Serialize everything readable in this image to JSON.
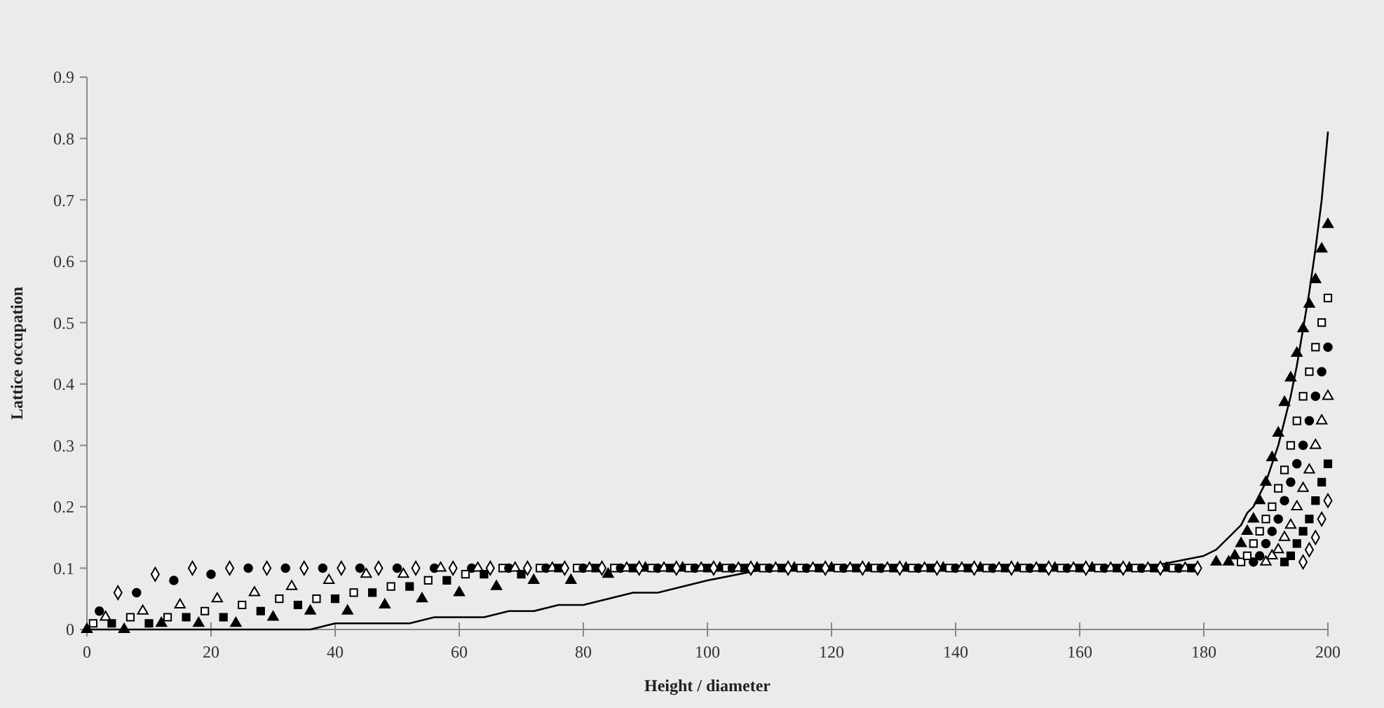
{
  "chart_data": {
    "type": "scatter",
    "xlabel": "Height / diameter",
    "ylabel": "Lattice occupation",
    "xlim": [
      0,
      200
    ],
    "xticks": [
      0,
      20,
      40,
      60,
      80,
      100,
      120,
      140,
      160,
      180,
      200
    ],
    "ylim": [
      0,
      0.9
    ],
    "yticks": [
      0,
      0.1,
      0.2,
      0.3,
      0.4,
      0.5,
      0.6,
      0.7,
      0.8,
      0.9
    ],
    "grid": false,
    "series": [
      {
        "type": "line",
        "marker": "none",
        "line_style": "solid",
        "color": "#000000",
        "x": [
          0,
          4,
          8,
          12,
          16,
          20,
          24,
          28,
          32,
          36,
          40,
          44,
          48,
          52,
          56,
          60,
          64,
          68,
          72,
          76,
          80,
          84,
          88,
          92,
          96,
          100,
          110,
          120,
          130,
          140,
          150,
          160,
          170,
          180,
          182,
          184,
          185,
          186,
          187,
          188,
          189,
          190,
          191,
          192,
          193,
          194,
          195,
          196,
          197,
          198,
          199,
          200
        ],
        "values": [
          0,
          0,
          0,
          0,
          0,
          0,
          0,
          0,
          0,
          0,
          0.01,
          0.01,
          0.01,
          0.01,
          0.02,
          0.02,
          0.02,
          0.03,
          0.03,
          0.04,
          0.04,
          0.05,
          0.06,
          0.06,
          0.07,
          0.08,
          0.1,
          0.1,
          0.1,
          0.1,
          0.1,
          0.1,
          0.1,
          0.12,
          0.13,
          0.15,
          0.16,
          0.17,
          0.19,
          0.2,
          0.22,
          0.24,
          0.27,
          0.3,
          0.34,
          0.38,
          0.43,
          0.49,
          0.55,
          0.62,
          0.7,
          0.81
        ]
      },
      {
        "marker": "triangle",
        "color": "#000000",
        "x": [
          0,
          6,
          12,
          18,
          24,
          30,
          36,
          42,
          48,
          54,
          60,
          66,
          72,
          78,
          84,
          90,
          96,
          102,
          108,
          114,
          120,
          126,
          132,
          138,
          144,
          150,
          156,
          162,
          168,
          174,
          182,
          184,
          185,
          186,
          187,
          188,
          189,
          190,
          191,
          192,
          193,
          194,
          195,
          196,
          197,
          198,
          199,
          200
        ],
        "values": [
          0,
          0,
          0.01,
          0.01,
          0.01,
          0.02,
          0.03,
          0.03,
          0.04,
          0.05,
          0.06,
          0.07,
          0.08,
          0.08,
          0.09,
          0.1,
          0.1,
          0.1,
          0.1,
          0.1,
          0.1,
          0.1,
          0.1,
          0.1,
          0.1,
          0.1,
          0.1,
          0.1,
          0.1,
          0.1,
          0.11,
          0.11,
          0.12,
          0.14,
          0.16,
          0.18,
          0.21,
          0.24,
          0.28,
          0.32,
          0.37,
          0.41,
          0.45,
          0.49,
          0.53,
          0.57,
          0.62,
          0.66
        ]
      },
      {
        "marker": "square",
        "color": "#ffffff",
        "x": [
          1,
          7,
          13,
          19,
          25,
          31,
          37,
          43,
          49,
          55,
          61,
          67,
          73,
          79,
          85,
          91,
          97,
          103,
          109,
          115,
          121,
          127,
          133,
          139,
          145,
          151,
          157,
          163,
          169,
          175,
          186,
          187,
          188,
          189,
          190,
          191,
          192,
          193,
          194,
          195,
          196,
          197,
          198,
          199,
          200
        ],
        "values": [
          0.01,
          0.02,
          0.02,
          0.03,
          0.04,
          0.05,
          0.05,
          0.06,
          0.07,
          0.08,
          0.09,
          0.1,
          0.1,
          0.1,
          0.1,
          0.1,
          0.1,
          0.1,
          0.1,
          0.1,
          0.1,
          0.1,
          0.1,
          0.1,
          0.1,
          0.1,
          0.1,
          0.1,
          0.1,
          0.1,
          0.11,
          0.12,
          0.14,
          0.16,
          0.18,
          0.2,
          0.23,
          0.26,
          0.3,
          0.34,
          0.38,
          0.42,
          0.46,
          0.5,
          0.54
        ]
      },
      {
        "marker": "circle",
        "color": "#000000",
        "x": [
          2,
          8,
          14,
          20,
          26,
          32,
          38,
          44,
          50,
          56,
          62,
          68,
          74,
          80,
          86,
          92,
          98,
          104,
          110,
          116,
          122,
          128,
          134,
          140,
          146,
          152,
          158,
          164,
          170,
          176,
          188,
          189,
          190,
          191,
          192,
          193,
          194,
          195,
          196,
          197,
          198,
          199,
          200
        ],
        "values": [
          0.03,
          0.06,
          0.08,
          0.09,
          0.1,
          0.1,
          0.1,
          0.1,
          0.1,
          0.1,
          0.1,
          0.1,
          0.1,
          0.1,
          0.1,
          0.1,
          0.1,
          0.1,
          0.1,
          0.1,
          0.1,
          0.1,
          0.1,
          0.1,
          0.1,
          0.1,
          0.1,
          0.1,
          0.1,
          0.1,
          0.11,
          0.12,
          0.14,
          0.16,
          0.18,
          0.21,
          0.24,
          0.27,
          0.3,
          0.34,
          0.38,
          0.42,
          0.46
        ]
      },
      {
        "marker": "triangle",
        "color": "#ffffff",
        "x": [
          3,
          9,
          15,
          21,
          27,
          33,
          39,
          45,
          51,
          57,
          63,
          69,
          75,
          81,
          87,
          93,
          99,
          105,
          111,
          117,
          123,
          129,
          135,
          141,
          147,
          153,
          159,
          165,
          171,
          177,
          190,
          191,
          192,
          193,
          194,
          195,
          196,
          197,
          198,
          199,
          200
        ],
        "values": [
          0.02,
          0.03,
          0.04,
          0.05,
          0.06,
          0.07,
          0.08,
          0.09,
          0.09,
          0.1,
          0.1,
          0.1,
          0.1,
          0.1,
          0.1,
          0.1,
          0.1,
          0.1,
          0.1,
          0.1,
          0.1,
          0.1,
          0.1,
          0.1,
          0.1,
          0.1,
          0.1,
          0.1,
          0.1,
          0.1,
          0.11,
          0.12,
          0.13,
          0.15,
          0.17,
          0.2,
          0.23,
          0.26,
          0.3,
          0.34,
          0.38
        ]
      },
      {
        "marker": "square",
        "color": "#000000",
        "x": [
          4,
          10,
          16,
          22,
          28,
          34,
          40,
          46,
          52,
          58,
          64,
          70,
          76,
          82,
          88,
          94,
          100,
          106,
          112,
          118,
          124,
          130,
          136,
          142,
          148,
          154,
          160,
          166,
          172,
          178,
          193,
          194,
          195,
          196,
          197,
          198,
          199,
          200
        ],
        "values": [
          0.01,
          0.01,
          0.02,
          0.02,
          0.03,
          0.04,
          0.05,
          0.06,
          0.07,
          0.08,
          0.09,
          0.09,
          0.1,
          0.1,
          0.1,
          0.1,
          0.1,
          0.1,
          0.1,
          0.1,
          0.1,
          0.1,
          0.1,
          0.1,
          0.1,
          0.1,
          0.1,
          0.1,
          0.1,
          0.1,
          0.11,
          0.12,
          0.14,
          0.16,
          0.18,
          0.21,
          0.24,
          0.27
        ]
      },
      {
        "marker": "diamond",
        "color": "#ffffff",
        "x": [
          5,
          11,
          17,
          23,
          29,
          35,
          41,
          47,
          53,
          59,
          65,
          71,
          77,
          83,
          89,
          95,
          101,
          107,
          113,
          119,
          125,
          131,
          137,
          143,
          149,
          155,
          161,
          167,
          173,
          179,
          196,
          197,
          198,
          199,
          200
        ],
        "values": [
          0.06,
          0.09,
          0.1,
          0.1,
          0.1,
          0.1,
          0.1,
          0.1,
          0.1,
          0.1,
          0.1,
          0.1,
          0.1,
          0.1,
          0.1,
          0.1,
          0.1,
          0.1,
          0.1,
          0.1,
          0.1,
          0.1,
          0.1,
          0.1,
          0.1,
          0.1,
          0.1,
          0.1,
          0.1,
          0.1,
          0.11,
          0.13,
          0.15,
          0.18,
          0.21
        ]
      }
    ]
  }
}
